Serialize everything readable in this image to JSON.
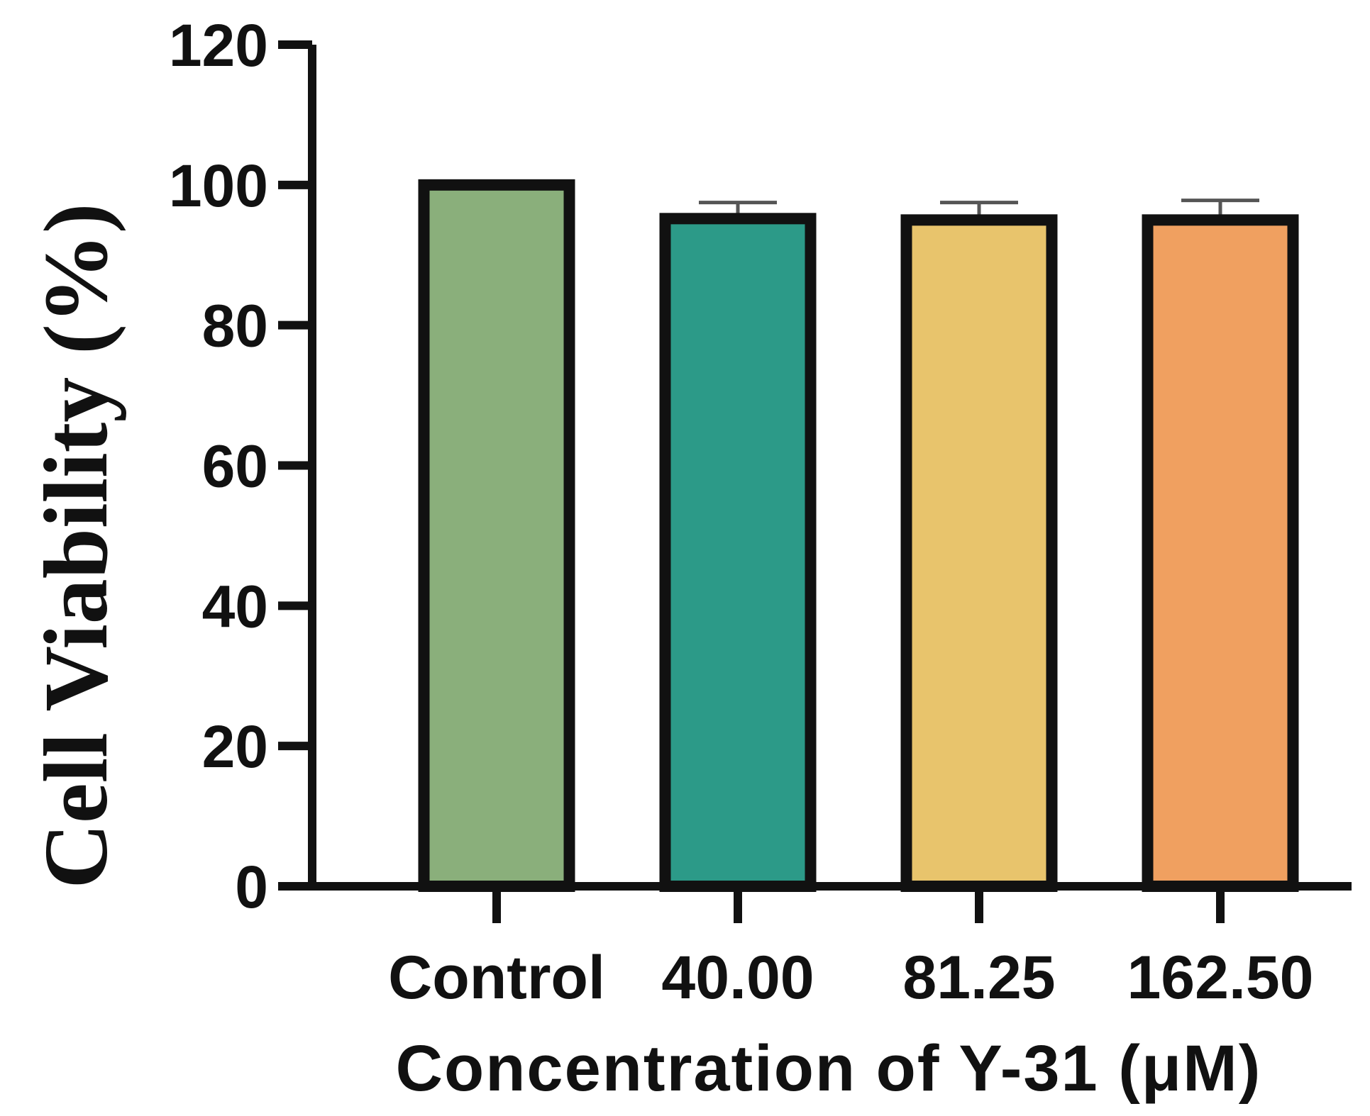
{
  "chart_data": {
    "type": "bar",
    "title": "",
    "xlabel": "Concentration of Y-31 (μM)",
    "ylabel": "Cell Viability (%)",
    "categories": [
      "Control",
      "40.00",
      "81.25",
      "162.50"
    ],
    "values": [
      100,
      95.2,
      95.0,
      95.0
    ],
    "errors": [
      0.3,
      2.3,
      2.5,
      2.8
    ],
    "colors": [
      "#8AAF7B",
      "#2C9A88",
      "#E8C46C",
      "#F0A060"
    ],
    "ylim": [
      0,
      120
    ],
    "yticks": [
      0,
      20,
      40,
      60,
      80,
      100,
      120
    ],
    "ytick_labels": [
      "0",
      "20",
      "40",
      "60",
      "80",
      "100",
      "120"
    ],
    "grid": false,
    "legend": "none"
  }
}
